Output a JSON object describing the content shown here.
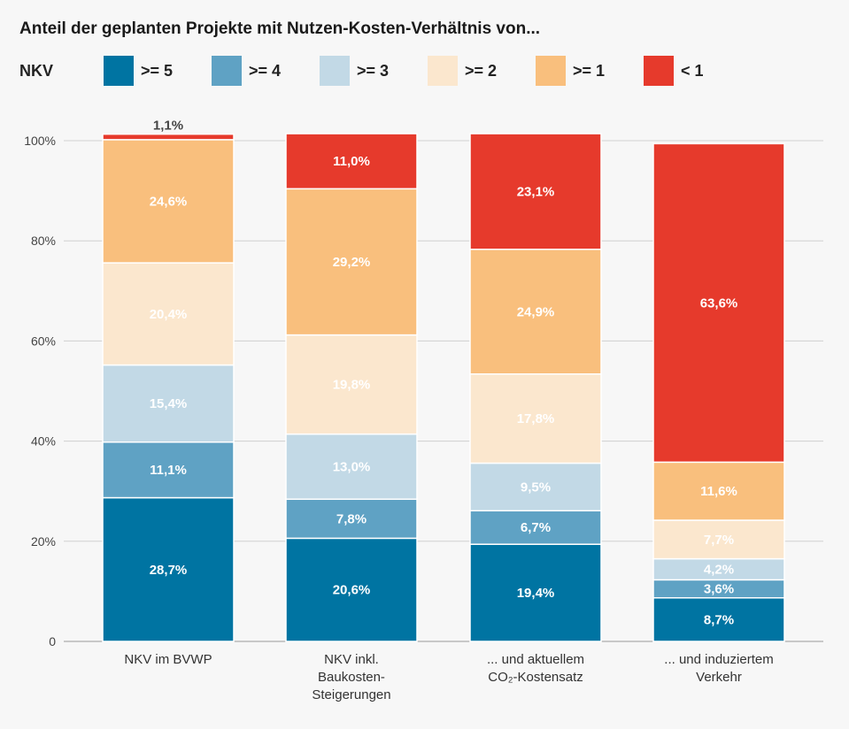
{
  "chart_data": {
    "type": "bar",
    "stacked": true,
    "title": "Anteil der geplanten Projekte mit Nutzen-Kosten-Verhältnis von...",
    "legend_title": "NKV",
    "legend_position": "top",
    "ylim": [
      0,
      100
    ],
    "yticks": [
      "0",
      "20%",
      "40%",
      "60%",
      "80%",
      "100%"
    ],
    "grid": true,
    "categories": [
      [
        "NKV im BVWP"
      ],
      [
        "NKV inkl.",
        "Baukosten-",
        "Steigerungen"
      ],
      [
        "... und aktuellem",
        "CO₂-Kostensatz"
      ],
      [
        "... und induziertem",
        "Verkehr"
      ]
    ],
    "series": [
      {
        "name": ">= 5",
        "color": "#0074a2",
        "values": [
          28.7,
          20.6,
          19.4,
          8.7
        ],
        "labels": [
          "28,7%",
          "20,6%",
          "19,4%",
          "8,7%"
        ]
      },
      {
        "name": ">= 4",
        "color": "#5fa2c4",
        "values": [
          11.1,
          7.8,
          6.7,
          3.6
        ],
        "labels": [
          "11,1%",
          "7,8%",
          "6,7%",
          "3,6%"
        ]
      },
      {
        "name": ">= 3",
        "color": "#c2d9e6",
        "values": [
          15.4,
          13.0,
          9.5,
          4.2
        ],
        "labels": [
          "15,4%",
          "13,0%",
          "9,5%",
          "4,2%"
        ]
      },
      {
        "name": ">= 2",
        "color": "#fbe7ce",
        "values": [
          20.4,
          19.8,
          17.8,
          7.7
        ],
        "labels": [
          "20,4%",
          "19,8%",
          "17,8%",
          "7,7%"
        ]
      },
      {
        "name": ">= 1",
        "color": "#f9bf7d",
        "values": [
          24.6,
          29.2,
          24.9,
          11.6
        ],
        "labels": [
          "24,6%",
          "29,2%",
          "24,9%",
          "11,6%"
        ]
      },
      {
        "name": "< 1",
        "color": "#e63a2c",
        "values": [
          1.1,
          11.0,
          23.1,
          63.6
        ],
        "labels": [
          "1,1%",
          "11,0%",
          "23,1%",
          "63,6%"
        ]
      }
    ]
  }
}
